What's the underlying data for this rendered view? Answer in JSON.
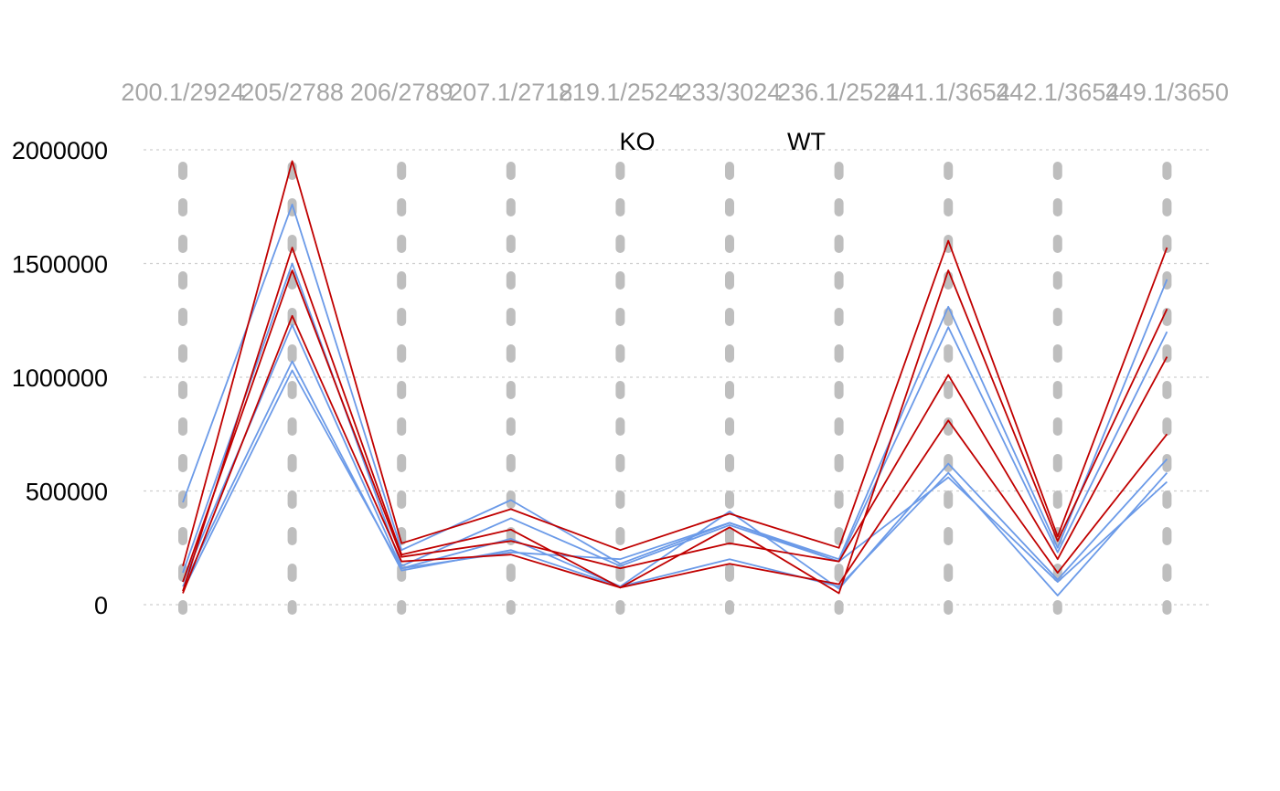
{
  "chart_data": {
    "type": "line",
    "subtype": "parallel-coordinates",
    "title": "",
    "xlabel": "",
    "ylabel": "",
    "ylim": [
      0,
      2000000
    ],
    "yticks": [
      0,
      500000,
      1000000,
      1500000,
      2000000
    ],
    "ytick_labels": [
      "0",
      "500000",
      "1000000",
      "1500000",
      "2000000"
    ],
    "grid": "horizontal-dotted",
    "legend": {
      "placement": "top-center",
      "entries": [
        {
          "label": "KO",
          "color": "#c00000"
        },
        {
          "label": "WT",
          "color": "#6b9ae8"
        }
      ]
    },
    "categories": [
      "200.1/2924",
      "205/2788",
      "206/2789",
      "207.1/2718",
      "219.1/2524",
      "233/3024",
      "236.1/2524",
      "241.1/3654",
      "242.1/3654",
      "249.1/3650"
    ],
    "series": [
      {
        "group": "KO",
        "color": "#c00000",
        "values": [
          170000,
          1950000,
          270000,
          420000,
          240000,
          400000,
          250000,
          1600000,
          300000,
          1570000
        ]
      },
      {
        "group": "KO",
        "color": "#c00000",
        "values": [
          60000,
          1570000,
          220000,
          330000,
          75000,
          340000,
          50000,
          1470000,
          280000,
          1300000
        ]
      },
      {
        "group": "KO",
        "color": "#c00000",
        "values": [
          100000,
          1470000,
          210000,
          280000,
          160000,
          270000,
          190000,
          1010000,
          200000,
          1090000
        ]
      },
      {
        "group": "KO",
        "color": "#c00000",
        "values": [
          50000,
          1270000,
          190000,
          220000,
          75000,
          180000,
          90000,
          810000,
          140000,
          750000
        ]
      },
      {
        "group": "WT",
        "color": "#6b9ae8",
        "values": [
          450000,
          1760000,
          240000,
          460000,
          180000,
          360000,
          200000,
          1310000,
          250000,
          1430000
        ]
      },
      {
        "group": "WT",
        "color": "#6b9ae8",
        "values": [
          140000,
          1500000,
          170000,
          380000,
          170000,
          350000,
          190000,
          1220000,
          230000,
          1200000
        ]
      },
      {
        "group": "WT",
        "color": "#6b9ae8",
        "values": [
          100000,
          1230000,
          160000,
          290000,
          80000,
          410000,
          70000,
          620000,
          110000,
          640000
        ]
      },
      {
        "group": "WT",
        "color": "#6b9ae8",
        "values": [
          80000,
          1070000,
          150000,
          240000,
          80000,
          200000,
          80000,
          580000,
          40000,
          580000
        ]
      },
      {
        "group": "WT",
        "color": "#6b9ae8",
        "values": [
          60000,
          1030000,
          160000,
          230000,
          200000,
          360000,
          190000,
          560000,
          100000,
          540000
        ]
      }
    ]
  }
}
